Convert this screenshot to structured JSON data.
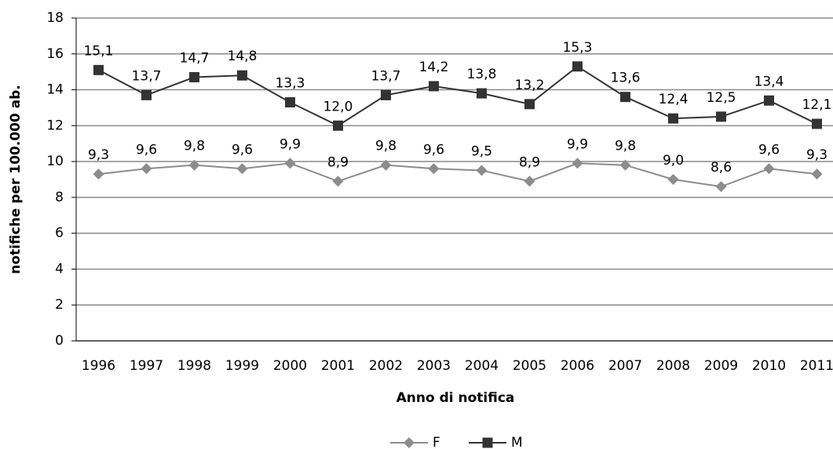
{
  "chart_data": {
    "type": "line",
    "x_label": "Anno di notifica",
    "y_label": "notifiche per 100.000 ab.",
    "categories": [
      "1996",
      "1997",
      "1998",
      "1999",
      "2000",
      "2001",
      "2002",
      "2003",
      "2004",
      "2005",
      "2006",
      "2007",
      "2008",
      "2009",
      "2010",
      "2011"
    ],
    "series": [
      {
        "name": "F",
        "color": "#8c8c8c",
        "marker": "diamond",
        "values": [
          9.3,
          9.6,
          9.8,
          9.6,
          9.9,
          8.9,
          9.8,
          9.6,
          9.5,
          8.9,
          9.9,
          9.8,
          9.0,
          8.6,
          9.6,
          9.3
        ],
        "value_labels": [
          "9,3",
          "9,6",
          "9,8",
          "9,6",
          "9,9",
          "8,9",
          "9,8",
          "9,6",
          "9,5",
          "8,9",
          "9,9",
          "9,8",
          "9,0",
          "8,6",
          "9,6",
          "9,3"
        ]
      },
      {
        "name": "M",
        "color": "#333333",
        "marker": "square",
        "values": [
          15.1,
          13.7,
          14.7,
          14.8,
          13.3,
          12.0,
          13.7,
          14.2,
          13.8,
          13.2,
          15.3,
          13.6,
          12.4,
          12.5,
          13.4,
          12.1
        ],
        "value_labels": [
          "15,1",
          "13,7",
          "14,7",
          "14,8",
          "13,3",
          "12,0",
          "13,7",
          "14,2",
          "13,8",
          "13,2",
          "15,3",
          "13,6",
          "12,4",
          "12,5",
          "13,4",
          "12,1"
        ]
      }
    ],
    "ylim": [
      0,
      18
    ],
    "yticks": [
      0,
      2,
      4,
      6,
      8,
      10,
      12,
      14,
      16,
      18
    ],
    "grid": true
  }
}
